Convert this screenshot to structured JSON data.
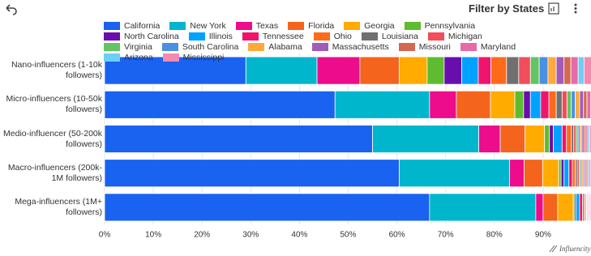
{
  "header": {
    "filter_label": "Filter by States"
  },
  "footer": {
    "brand": "Influencity"
  },
  "chart_data": {
    "type": "bar",
    "stacked": true,
    "grid": true,
    "categories": [
      "Nano-influencers (1-10k followers)",
      "Micro-influencers (10-50k followers)",
      "Medio-influencer (50-200k followers)",
      "Macro-influencers (200k-1M followers)",
      "Mega-influencers (1M+ followers)"
    ],
    "xlim": [
      0,
      100
    ],
    "xticks": [
      {
        "value": 0,
        "label": "0%"
      },
      {
        "value": 10,
        "label": "10%"
      },
      {
        "value": 20,
        "label": "20%"
      },
      {
        "value": 30,
        "label": "30%"
      },
      {
        "value": 40,
        "label": "40%"
      },
      {
        "value": 50,
        "label": "50%"
      },
      {
        "value": 60,
        "label": "60%"
      },
      {
        "value": 70,
        "label": "70%"
      },
      {
        "value": 80,
        "label": "80%"
      },
      {
        "value": 90,
        "label": "90%"
      }
    ],
    "series": [
      {
        "name": "California",
        "color": "#1a62f0",
        "values": [
          29,
          47.3,
          55,
          60.5,
          66.7
        ]
      },
      {
        "name": "New York",
        "color": "#00b6cc",
        "values": [
          14.6,
          19.4,
          21.8,
          22.6,
          21.8
        ]
      },
      {
        "name": "Texas",
        "color": "#ec0c8c",
        "values": [
          8.8,
          5.5,
          4.4,
          3,
          1.5
        ]
      },
      {
        "name": "Florida",
        "color": "#f4641c",
        "values": [
          8.1,
          7,
          5.1,
          3.8,
          3
        ]
      },
      {
        "name": "Georgia",
        "color": "#ffab00",
        "values": [
          5.7,
          5,
          4,
          3.3,
          3.2
        ]
      },
      {
        "name": "Pennsylvania",
        "color": "#5fbb2f",
        "values": [
          3.5,
          1.8,
          1,
          0.5,
          0.3
        ]
      },
      {
        "name": "North Carolina",
        "color": "#6a0dad",
        "values": [
          3.6,
          1.4,
          0.8,
          0.6,
          0.3
        ]
      },
      {
        "name": "Illinois",
        "color": "#00a2ff",
        "values": [
          3.4,
          2.1,
          1.8,
          1,
          0.7
        ]
      },
      {
        "name": "Tennessee",
        "color": "#f0146c",
        "values": [
          2.6,
          1.7,
          0.9,
          0.7,
          0.6
        ]
      },
      {
        "name": "Ohio",
        "color": "#ff6a1a",
        "values": [
          3.2,
          1.5,
          1,
          0.6,
          0.4
        ]
      },
      {
        "name": "Louisiana",
        "color": "#707070",
        "values": [
          2.5,
          1.2,
          0.5,
          0.4,
          0.2
        ]
      },
      {
        "name": "Michigan",
        "color": "#f24d5a",
        "values": [
          2.4,
          1,
          0.5,
          0.4,
          0.2
        ]
      },
      {
        "name": "Virginia",
        "color": "#62c462",
        "values": [
          1.8,
          0.9,
          0.4,
          0.3,
          0.1
        ]
      },
      {
        "name": "South Carolina",
        "color": "#4a90e2",
        "values": [
          1.8,
          0.8,
          0.4,
          0.3,
          0.2
        ]
      },
      {
        "name": "Alabama",
        "color": "#ffa93a",
        "values": [
          1.7,
          0.9,
          0.4,
          0.4,
          0.1
        ]
      },
      {
        "name": "Massachusetts",
        "color": "#a05cb8",
        "values": [
          1.6,
          0.8,
          0.4,
          0.3,
          0.2
        ]
      },
      {
        "name": "Missouri",
        "color": "#d4694f",
        "values": [
          1.4,
          0.7,
          0.4,
          0.3,
          0.1
        ]
      },
      {
        "name": "Maryland",
        "color": "#e86aa8",
        "values": [
          1.5,
          0.8,
          0.4,
          0.3,
          0.2
        ]
      },
      {
        "name": "Arizona",
        "color": "#6ecff6",
        "values": [
          1.2,
          0.6,
          0.4,
          0.4,
          0.1
        ]
      },
      {
        "name": "Mississippi",
        "color": "#f58ab0",
        "values": [
          1.6,
          0.6,
          0.4,
          0.3,
          0.1
        ]
      }
    ]
  }
}
